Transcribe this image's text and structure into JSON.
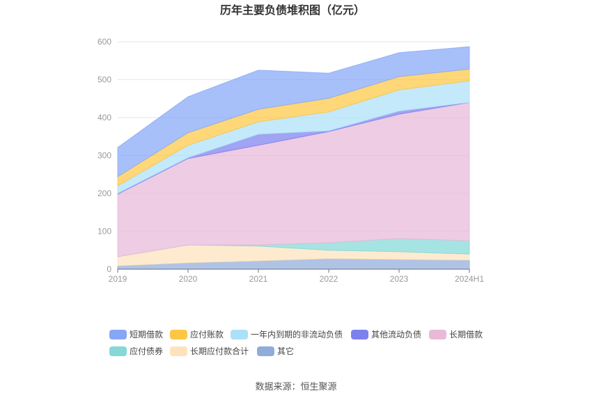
{
  "title": "历年主要负债堆积图（亿元）",
  "source": "数据来源：恒生聚源",
  "chart_data": {
    "type": "area",
    "stacked": true,
    "title": "历年主要负债堆积图（亿元）",
    "categories": [
      "2019",
      "2020",
      "2021",
      "2022",
      "2023",
      "2024H1"
    ],
    "ylim": [
      0,
      600
    ],
    "yticks": [
      0,
      100,
      200,
      300,
      400,
      500,
      600
    ],
    "grid": true,
    "legend_position": "bottom",
    "series": [
      {
        "name": "短期借款",
        "color": "#87a7f6",
        "values": [
          77,
          95,
          103,
          66,
          63,
          59
        ]
      },
      {
        "name": "应付账款",
        "color": "#fcc744",
        "values": [
          24,
          33,
          33,
          36,
          35,
          31
        ]
      },
      {
        "name": "一年内到期的非流动负债",
        "color": "#ace0f9",
        "values": [
          20,
          33,
          33,
          50,
          56,
          57
        ]
      },
      {
        "name": "其他流动负债",
        "color": "#7d80ef",
        "values": [
          2,
          2,
          29,
          2,
          8,
          0
        ]
      },
      {
        "name": "长期借款",
        "color": "#e8b9d9",
        "values": [
          165,
          228,
          263,
          293,
          328,
          365
        ]
      },
      {
        "name": "应付债券",
        "color": "#84d8d8",
        "values": [
          0,
          0,
          3,
          20,
          35,
          35
        ]
      },
      {
        "name": "长期应付款合计",
        "color": "#fde3bd",
        "values": [
          24,
          47,
          39,
          22,
          20,
          16
        ]
      },
      {
        "name": "其它",
        "color": "#90acdb",
        "values": [
          9,
          17,
          22,
          28,
          26,
          24
        ]
      }
    ]
  }
}
